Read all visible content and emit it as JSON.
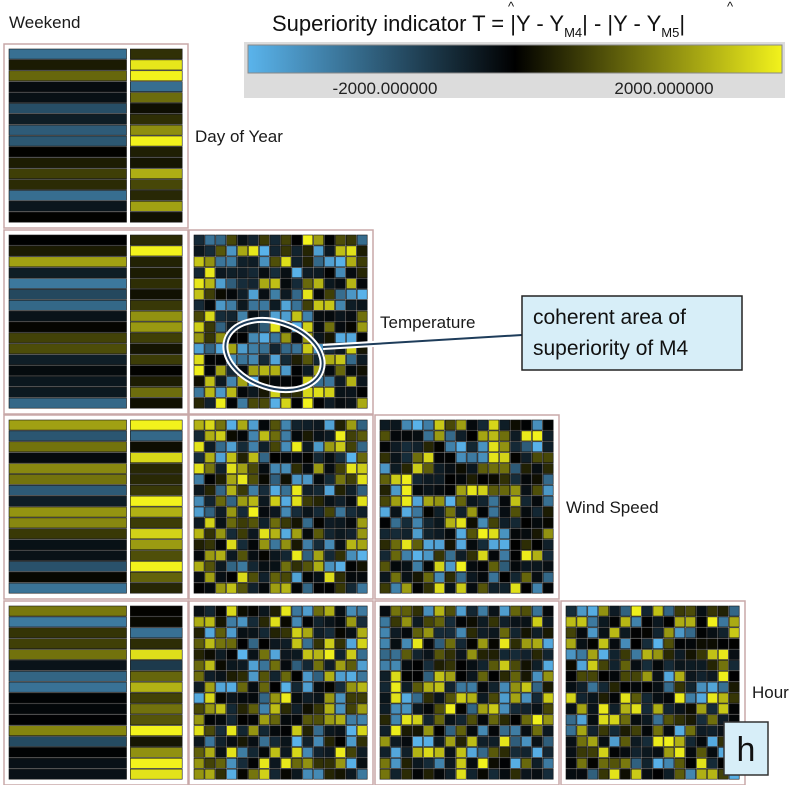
{
  "chart_data": {
    "type": "heatmap",
    "title": "Superiority indicator T = |Y - Ŷ_M4| - |Y - Ŷ_M5|",
    "title_parts": {
      "prefix": "Superiority indicator T = |Y - ",
      "y1": "Y",
      "sub1": "M4",
      "middle": "| - |Y - ",
      "y2": "Y",
      "sub2": "M5",
      "suffix": "|"
    },
    "legend": {
      "min_color": "#5ab4ec",
      "mid_color": "#000000",
      "max_color": "#f2f21c",
      "tick_values": [
        -2000,
        2000
      ],
      "tick_labels": [
        "-2000.000000",
        "2000.000000"
      ]
    },
    "variables": [
      "Weekend",
      "Day of Year",
      "Temperature",
      "Wind Speed",
      "Hour"
    ],
    "panels": [
      {
        "x_var": "Weekend",
        "y_var": "Day of Year",
        "cols": 2,
        "rows": 16
      },
      {
        "x_var": "Weekend",
        "y_var": "Temperature",
        "cols": 2,
        "rows": 16
      },
      {
        "x_var": "Day of Year",
        "y_var": "Temperature",
        "cols": 16,
        "rows": 16
      },
      {
        "x_var": "Weekend",
        "y_var": "Wind Speed",
        "cols": 2,
        "rows": 16
      },
      {
        "x_var": "Day of Year",
        "y_var": "Wind Speed",
        "cols": 16,
        "rows": 16
      },
      {
        "x_var": "Temperature",
        "y_var": "Wind Speed",
        "cols": 16,
        "rows": 16
      },
      {
        "x_var": "Weekend",
        "y_var": "Hour",
        "cols": 2,
        "rows": 16
      },
      {
        "x_var": "Day of Year",
        "y_var": "Hour",
        "cols": 16,
        "rows": 16
      },
      {
        "x_var": "Temperature",
        "y_var": "Hour",
        "cols": 16,
        "rows": 16
      },
      {
        "x_var": "Wind Speed",
        "y_var": "Hour",
        "cols": 16,
        "rows": 16
      }
    ],
    "annotation": {
      "lines": [
        "coherent area of",
        "superiority of M4"
      ],
      "panel": "Day of Year vs Temperature"
    },
    "panel_letter": "h",
    "colors": {
      "panel_border": "#c8a8a8",
      "callout_fill": "#d7eef8"
    }
  }
}
